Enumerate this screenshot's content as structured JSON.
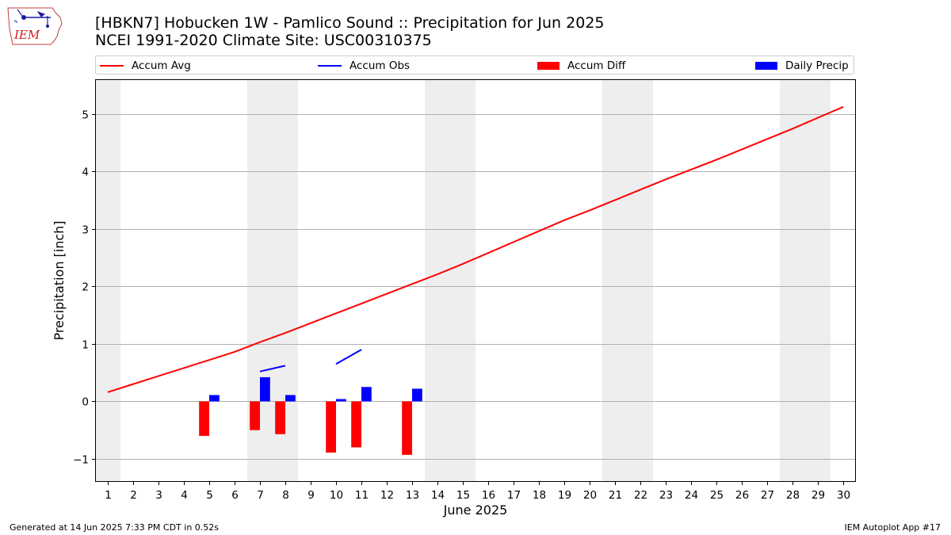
{
  "logo": {
    "text": "IEM",
    "icon": "iowa-state-map-logo"
  },
  "header": {
    "title_line1": "[HBKN7] Hobucken 1W - Pamlico Sound :: Precipitation for Jun 2025",
    "title_line2": "NCEI 1991-2020 Climate Site: USC00310375"
  },
  "legend": {
    "accum_avg": "Accum Avg",
    "accum_obs": "Accum Obs",
    "accum_diff": "Accum Diff",
    "daily_precip": "Daily Precip"
  },
  "colors": {
    "avg": "#ff0000",
    "obs": "#0000ff",
    "diff": "#ff0000",
    "daily": "#0000ff",
    "weekend": "#eeeeee"
  },
  "footer": {
    "left": "Generated at 14 Jun 2025 7:33 PM CDT in 0.52s",
    "right": "IEM Autoplot App #17"
  },
  "chart_data": {
    "type": "bar+line",
    "title": "[HBKN7] Hobucken 1W - Pamlico Sound :: Precipitation for Jun 2025",
    "xlabel": "June 2025",
    "ylabel": "Precipitation [inch]",
    "xlim": [
      0.5,
      30.5
    ],
    "ylim": [
      -1.4,
      5.6
    ],
    "yticks": [
      -1,
      0,
      1,
      2,
      3,
      4,
      5
    ],
    "ytick_labels": [
      "−1",
      "0",
      "1",
      "2",
      "3",
      "4",
      "5"
    ],
    "xticks": [
      1,
      2,
      3,
      4,
      5,
      6,
      7,
      8,
      9,
      10,
      11,
      12,
      13,
      14,
      15,
      16,
      17,
      18,
      19,
      20,
      21,
      22,
      23,
      24,
      25,
      26,
      27,
      28,
      29,
      30
    ],
    "grid": "horizontal",
    "weekend_bands": [
      [
        0.5,
        1.5
      ],
      [
        6.5,
        8.5
      ],
      [
        13.5,
        15.5
      ],
      [
        20.5,
        22.5
      ],
      [
        27.5,
        29.5
      ]
    ],
    "series": [
      {
        "name": "Accum Avg",
        "type": "line",
        "x": [
          1,
          2,
          3,
          4,
          5,
          6,
          7,
          8,
          9,
          10,
          11,
          12,
          13,
          14,
          15,
          16,
          17,
          18,
          19,
          20,
          21,
          22,
          23,
          24,
          25,
          26,
          27,
          28,
          29,
          30
        ],
        "values": [
          0.16,
          0.3,
          0.44,
          0.58,
          0.72,
          0.86,
          1.03,
          1.19,
          1.36,
          1.53,
          1.7,
          1.87,
          2.04,
          2.21,
          2.39,
          2.58,
          2.77,
          2.96,
          3.15,
          3.32,
          3.5,
          3.68,
          3.86,
          4.03,
          4.2,
          4.38,
          4.56,
          4.74,
          4.93,
          5.12
        ]
      },
      {
        "name": "Accum Obs",
        "type": "line",
        "segments": [
          {
            "x": [
              7,
              8
            ],
            "values": [
              0.52,
              0.62
            ]
          },
          {
            "x": [
              10,
              11
            ],
            "values": [
              0.65,
              0.9
            ]
          }
        ]
      },
      {
        "name": "Accum Diff",
        "type": "bar",
        "offset": -0.2,
        "x": [
          5,
          7,
          8,
          10,
          11,
          13
        ],
        "values": [
          -0.6,
          -0.5,
          -0.57,
          -0.89,
          -0.8,
          -0.93
        ]
      },
      {
        "name": "Daily Precip",
        "type": "bar",
        "offset": 0.2,
        "x": [
          5,
          7,
          8,
          10,
          11,
          13
        ],
        "values": [
          0.11,
          0.42,
          0.11,
          0.04,
          0.25,
          0.22
        ]
      }
    ]
  }
}
